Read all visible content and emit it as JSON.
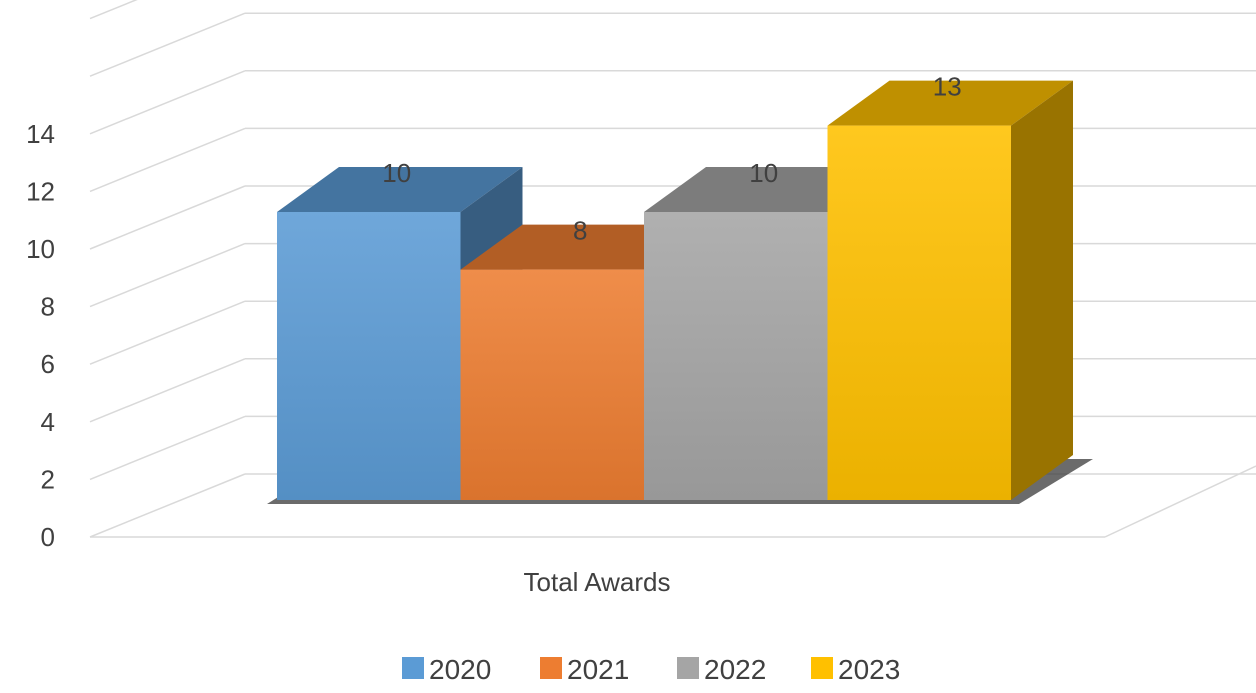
{
  "chart_data": {
    "type": "bar",
    "style": "3d-clustered-column",
    "categories": [
      "Total Awards"
    ],
    "series": [
      {
        "name": "2020",
        "values": [
          10
        ],
        "color": "#5B9BD5"
      },
      {
        "name": "2021",
        "values": [
          8
        ],
        "color": "#ED7D31"
      },
      {
        "name": "2022",
        "values": [
          10
        ],
        "color": "#A5A5A5"
      },
      {
        "name": "2023",
        "values": [
          13
        ],
        "color": "#FFC000"
      }
    ],
    "yticks": [
      "0",
      "2",
      "4",
      "6",
      "8",
      "10",
      "12",
      "14"
    ],
    "ylim": [
      0,
      18
    ],
    "grid": true,
    "legend": "bottom",
    "data_labels": true
  }
}
